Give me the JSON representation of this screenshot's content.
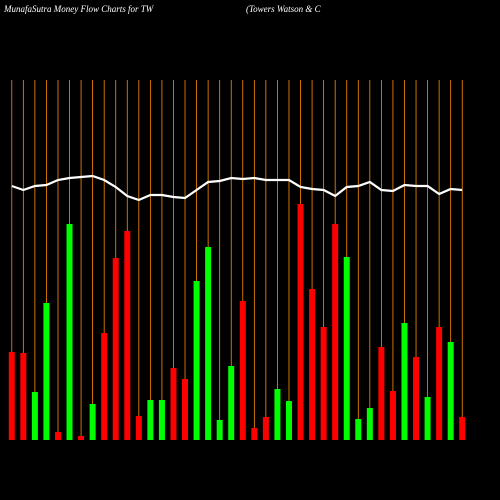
{
  "chart_data": {
    "type": "bar",
    "title": "MunafaSutra  Money Flow  Charts for TW",
    "subtitle": "(Towers Watson  & C",
    "ylim": [
      0,
      360
    ],
    "series": [
      {
        "name": "Money flow",
        "values": [
          88,
          87,
          48,
          137,
          8,
          216,
          4,
          36,
          107,
          182,
          209,
          24,
          40,
          40,
          72,
          61,
          159,
          193,
          20,
          74,
          139,
          12,
          23,
          51,
          39,
          236,
          151,
          113,
          216,
          183,
          21,
          32,
          93,
          49,
          117,
          83,
          43,
          113,
          98,
          23
        ],
        "colors": [
          "#ff0000",
          "#ff0000",
          "#00ff00",
          "#00ff00",
          "#ff0000",
          "#00ff00",
          "#ff0000",
          "#00ff00",
          "#ff0000",
          "#ff0000",
          "#ff0000",
          "#ff0000",
          "#00ff00",
          "#00ff00",
          "#ff0000",
          "#ff0000",
          "#00ff00",
          "#00ff00",
          "#00ff00",
          "#00ff00",
          "#ff0000",
          "#ff0000",
          "#ff0000",
          "#00ff00",
          "#00ff00",
          "#ff0000",
          "#ff0000",
          "#ff0000",
          "#ff0000",
          "#00ff00",
          "#00ff00",
          "#00ff00",
          "#ff0000",
          "#ff0000",
          "#00ff00",
          "#ff0000",
          "#00ff00",
          "#ff0000",
          "#00ff00",
          "#ff0000"
        ]
      },
      {
        "name": "Price",
        "type": "line",
        "color": "#ffffff",
        "values": [
          254,
          250,
          254,
          255,
          260,
          262,
          263,
          264,
          260,
          253,
          244,
          240,
          245,
          245,
          243,
          242,
          250,
          258,
          259,
          262,
          261,
          262,
          260,
          260,
          260,
          253,
          251,
          250,
          244,
          253,
          254,
          258,
          250,
          249,
          255,
          254,
          254,
          246,
          251,
          250
        ]
      }
    ],
    "gridline_color": "#ff8c00"
  }
}
